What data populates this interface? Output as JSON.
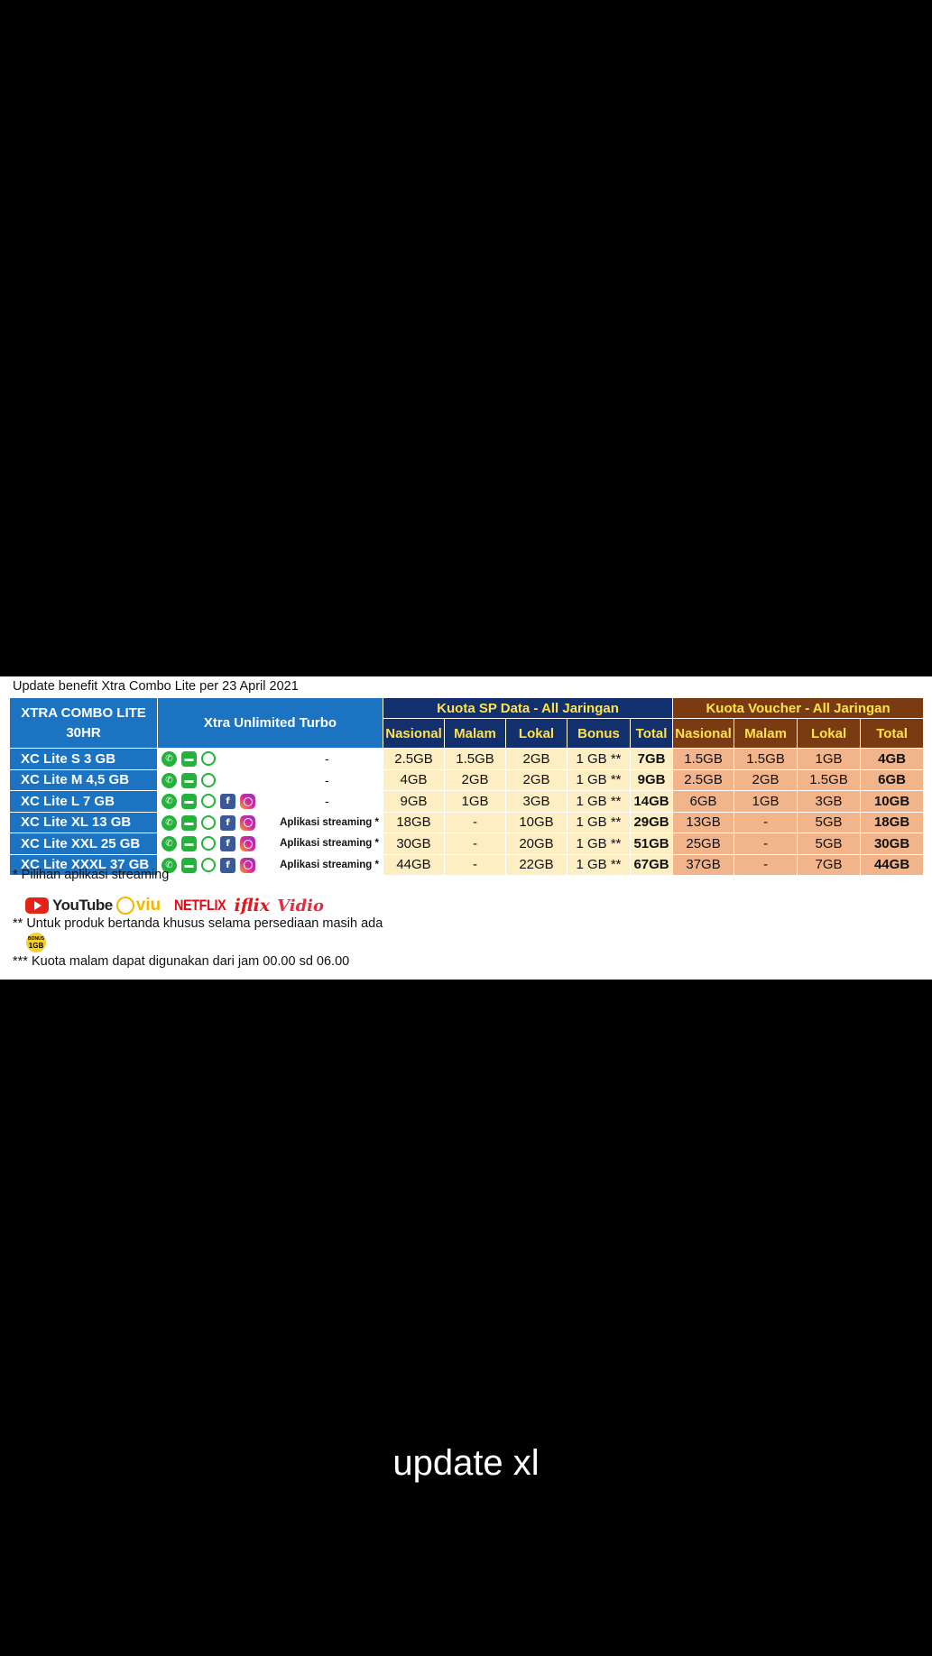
{
  "title": "Update benefit Xtra Combo Lite per 23 April 2021",
  "header": {
    "product_col": "XTRA COMBO LITE 30HR",
    "unlimited_col": "Xtra Unlimited Turbo",
    "sp_group": "Kuota SP Data - All Jaringan",
    "voucher_group": "Kuota Voucher - All Jaringan",
    "sp_cols": [
      "Nasional",
      "Malam",
      "Lokal",
      "Bonus",
      "Total"
    ],
    "voucher_cols": [
      "Nasional",
      "Malam",
      "Lokal",
      "Total"
    ]
  },
  "rows": [
    {
      "name": "XC Lite S 3 GB",
      "apps": [
        "whatsapp-icon",
        "line-icon",
        "wechat-icon"
      ],
      "extra": "-",
      "sp": [
        "2.5GB",
        "1.5GB",
        "2GB",
        "1 GB **",
        "7GB"
      ],
      "vo": [
        "1.5GB",
        "1.5GB",
        "1GB",
        "4GB"
      ]
    },
    {
      "name": "XC Lite M 4,5 GB",
      "apps": [
        "whatsapp-icon",
        "line-icon",
        "wechat-icon"
      ],
      "extra": "-",
      "sp": [
        "4GB",
        "2GB",
        "2GB",
        "1 GB **",
        "9GB"
      ],
      "vo": [
        "2.5GB",
        "2GB",
        "1.5GB",
        "6GB"
      ]
    },
    {
      "name": "XC Lite L 7 GB",
      "apps": [
        "whatsapp-icon",
        "line-icon",
        "wechat-icon",
        "facebook-icon",
        "instagram-icon"
      ],
      "extra": "-",
      "sp": [
        "9GB",
        "1GB",
        "3GB",
        "1 GB **",
        "14GB"
      ],
      "vo": [
        "6GB",
        "1GB",
        "3GB",
        "10GB"
      ]
    },
    {
      "name": "XC Lite XL 13 GB",
      "apps": [
        "whatsapp-icon",
        "line-icon",
        "wechat-icon",
        "facebook-icon",
        "instagram-icon"
      ],
      "extra": "Aplikasi streaming *",
      "sp": [
        "18GB",
        "-",
        "10GB",
        "1 GB **",
        "29GB"
      ],
      "vo": [
        "13GB",
        "-",
        "5GB",
        "18GB"
      ]
    },
    {
      "name": "XC Lite XXL 25 GB",
      "apps": [
        "whatsapp-icon",
        "line-icon",
        "wechat-icon",
        "facebook-icon",
        "instagram-icon"
      ],
      "extra": "Aplikasi streaming *",
      "sp": [
        "30GB",
        "-",
        "20GB",
        "1 GB **",
        "51GB"
      ],
      "vo": [
        "25GB",
        "-",
        "5GB",
        "30GB"
      ]
    },
    {
      "name": "XC Lite XXXL 37 GB",
      "apps": [
        "whatsapp-icon",
        "line-icon",
        "wechat-icon",
        "facebook-icon",
        "instagram-icon"
      ],
      "extra": "Aplikasi streaming *",
      "sp": [
        "44GB",
        "-",
        "22GB",
        "1 GB **",
        "67GB"
      ],
      "vo": [
        "37GB",
        "-",
        "7GB",
        "44GB"
      ]
    }
  ],
  "notes": {
    "streaming": "* Pilihan aplikasi streaming",
    "special": "** Untuk produk bertanda khusus selama persediaan masih ada",
    "night": "*** Kuota malam dapat digunakan dari jam 00.00 sd 06.00"
  },
  "logos": {
    "youtube": "YouTube",
    "viu": "viu",
    "netflix": "NETFLIX",
    "iflix": "iflix",
    "vidio": "Vidio"
  },
  "badge": {
    "top": "BONUS",
    "main": "1GB"
  },
  "caption": "update xl",
  "colors": {
    "blue": "#1c73c2",
    "navy": "#12306e",
    "brown": "#7a3b12",
    "yellow": "#ffe24a",
    "cream": "#fdeec4",
    "peach": "#f2b48a"
  }
}
